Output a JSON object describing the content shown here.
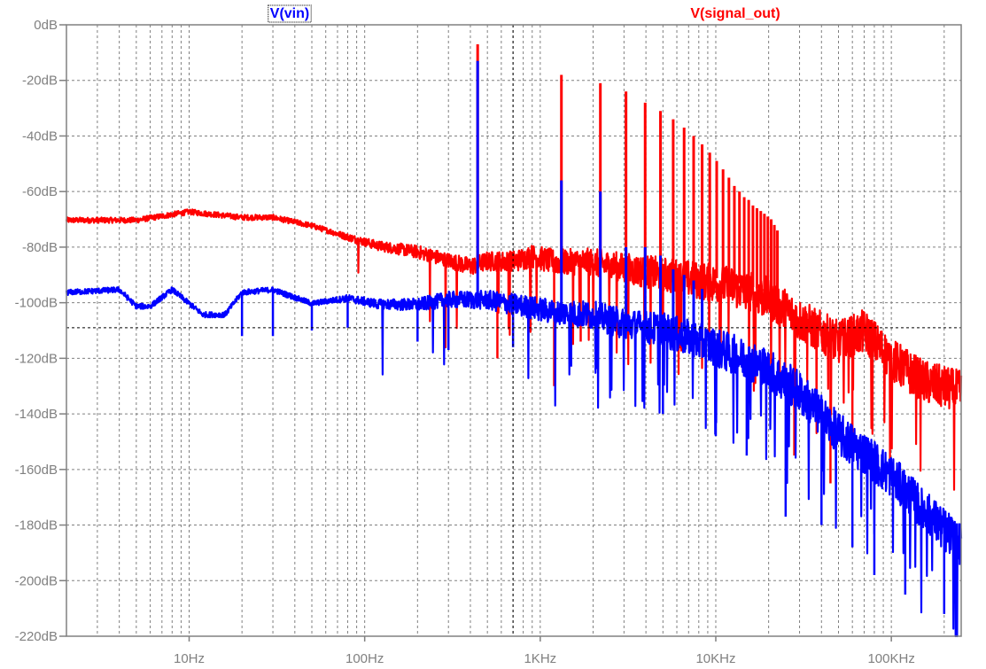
{
  "chart_data": {
    "type": "line",
    "x_scale": "log",
    "xlim": [
      "2Hz",
      "250KHz"
    ],
    "ylim": [
      -220,
      0
    ],
    "grid": true,
    "y_ticks": [
      "0dB",
      "-20dB",
      "-40dB",
      "-60dB",
      "-80dB",
      "-100dB",
      "-120dB",
      "-140dB",
      "-160dB",
      "-180dB",
      "-200dB",
      "-220dB"
    ],
    "x_ticks": [
      "10Hz",
      "100Hz",
      "1KHz",
      "10KHz",
      "100KHz"
    ],
    "cursor": {
      "x": "700Hz",
      "y": -109
    },
    "series": [
      {
        "name": "V(signal_out)",
        "color": "#ff0000",
        "baseline": [
          [
            2,
            -70
          ],
          [
            5,
            -70
          ],
          [
            10,
            -67
          ],
          [
            20,
            -69
          ],
          [
            30,
            -69
          ],
          [
            50,
            -72
          ],
          [
            80,
            -76
          ],
          [
            120,
            -79
          ],
          [
            200,
            -81
          ],
          [
            300,
            -84
          ],
          [
            400,
            -86
          ],
          [
            500,
            -84
          ],
          [
            700,
            -84
          ],
          [
            900,
            -82
          ],
          [
            1200,
            -84
          ],
          [
            2000,
            -84
          ],
          [
            3000,
            -86
          ],
          [
            5000,
            -88
          ],
          [
            8000,
            -90
          ],
          [
            12000,
            -92
          ],
          [
            20000,
            -96
          ],
          [
            30000,
            -104
          ],
          [
            50000,
            -112
          ],
          [
            70000,
            -108
          ],
          [
            100000,
            -118
          ],
          [
            150000,
            -126
          ],
          [
            250000,
            -130
          ]
        ],
        "peaks": [
          [
            440,
            -7
          ],
          [
            1320,
            -18
          ],
          [
            2200,
            -21
          ],
          [
            3080,
            -24
          ],
          [
            3960,
            -28
          ],
          [
            4840,
            -31
          ],
          [
            5720,
            -34
          ],
          [
            6600,
            -37
          ],
          [
            7480,
            -40
          ],
          [
            8360,
            -43
          ],
          [
            9240,
            -46
          ],
          [
            10120,
            -49
          ],
          [
            11000,
            -52
          ],
          [
            11880,
            -55
          ],
          [
            12760,
            -58
          ],
          [
            13640,
            -60
          ],
          [
            14520,
            -62
          ],
          [
            15400,
            -63
          ],
          [
            16280,
            -65
          ],
          [
            17160,
            -66
          ],
          [
            18040,
            -67
          ],
          [
            18920,
            -68
          ],
          [
            19800,
            -69
          ],
          [
            20680,
            -70
          ],
          [
            21560,
            -72
          ],
          [
            22440,
            -74
          ]
        ],
        "dips": [
          [
            570,
            -120
          ],
          [
            1200,
            -130
          ],
          [
            1700,
            -114
          ],
          [
            28000,
            -155
          ],
          [
            45000,
            -165
          ],
          [
            60000,
            -150
          ]
        ]
      },
      {
        "name": "V(vin)",
        "color": "#0000ff",
        "baseline": [
          [
            2,
            -96
          ],
          [
            4,
            -95
          ],
          [
            5,
            -101
          ],
          [
            6,
            -101
          ],
          [
            8,
            -95
          ],
          [
            12,
            -104
          ],
          [
            16,
            -104
          ],
          [
            20,
            -96
          ],
          [
            30,
            -95
          ],
          [
            50,
            -100
          ],
          [
            80,
            -98
          ],
          [
            120,
            -100
          ],
          [
            200,
            -100
          ],
          [
            300,
            -98
          ],
          [
            500,
            -98
          ],
          [
            800,
            -100
          ],
          [
            1200,
            -102
          ],
          [
            2000,
            -103
          ],
          [
            3000,
            -106
          ],
          [
            5000,
            -108
          ],
          [
            8000,
            -112
          ],
          [
            12000,
            -116
          ],
          [
            20000,
            -122
          ],
          [
            30000,
            -130
          ],
          [
            50000,
            -145
          ],
          [
            70000,
            -152
          ],
          [
            100000,
            -160
          ],
          [
            150000,
            -172
          ],
          [
            250000,
            -185
          ]
        ],
        "peaks": [
          [
            440,
            -13
          ],
          [
            1320,
            -56
          ],
          [
            2200,
            -60
          ],
          [
            3080,
            -80
          ],
          [
            3960,
            -80
          ],
          [
            4840,
            -83
          ],
          [
            5720,
            -88
          ],
          [
            6600,
            -90
          ],
          [
            7480,
            -92
          ],
          [
            8360,
            -95
          ]
        ],
        "dips": [
          [
            20,
            -112
          ],
          [
            30,
            -112
          ],
          [
            50,
            -110
          ],
          [
            80,
            -109
          ],
          [
            200,
            -114
          ],
          [
            300,
            -117
          ],
          [
            700,
            -116
          ],
          [
            1500,
            -123
          ],
          [
            5000,
            -140
          ],
          [
            10000,
            -148
          ],
          [
            15000,
            -155
          ],
          [
            25000,
            -177
          ],
          [
            40000,
            -180
          ],
          [
            60000,
            -188
          ],
          [
            80000,
            -198
          ],
          [
            120000,
            -205
          ],
          [
            200000,
            -212
          ]
        ]
      }
    ]
  }
}
